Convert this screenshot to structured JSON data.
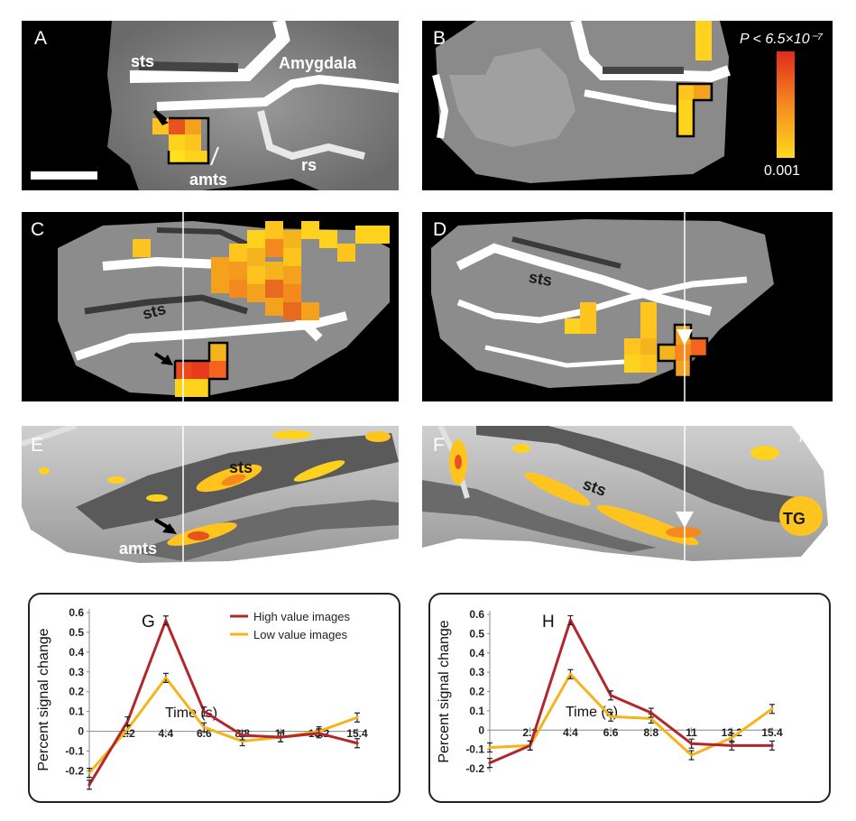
{
  "panels": {
    "A": {
      "letter": "A",
      "sts": "sts",
      "amygdala": "Amygdala",
      "amts": "amts",
      "rs": "rs"
    },
    "B": {
      "letter": "B",
      "colorbar_top": "P < 6.5×10⁻⁷",
      "colorbar_bottom": "0.001"
    },
    "C": {
      "letter": "C",
      "sts": "sts"
    },
    "D": {
      "letter": "D",
      "sts": "sts"
    },
    "E": {
      "letter": "E",
      "sts": "sts",
      "amts": "amts"
    },
    "F": {
      "letter": "F",
      "sts": "sts",
      "ls": "ls",
      "tg": "TG"
    }
  },
  "colors": {
    "high": "#b3262c",
    "low": "#f4b41a",
    "brain_bg": "#000000",
    "activation_low": "#ffd21e",
    "activation_high": "#e83a1e"
  },
  "chart_data": [
    {
      "type": "line",
      "panel_letter": "G",
      "xlabel": "Time (s)",
      "ylabel": "Percent signal change",
      "categories": [
        "0",
        "2.2",
        "4.4",
        "6.6",
        "8.8",
        "11",
        "13.2",
        "15.4"
      ],
      "tick_labels_x": [
        "2.2",
        "4.4",
        "6.6",
        "8.8",
        "11",
        "13.2",
        "15.4"
      ],
      "y_ticks": [
        "0.6",
        "0.5",
        "0.4",
        "0.3",
        "0.2",
        "0.1",
        "0",
        "-0.1",
        "-0.2"
      ],
      "ylim": [
        -0.28,
        0.6
      ],
      "legend": "top-right",
      "series": [
        {
          "name": "High value images",
          "color": "#b3262c",
          "values": [
            -0.27,
            0.05,
            0.56,
            0.1,
            -0.02,
            -0.03,
            -0.01,
            -0.06
          ]
        },
        {
          "name": "Low value images",
          "color": "#f4b41a",
          "values": [
            -0.21,
            0.01,
            0.27,
            0.02,
            -0.05,
            -0.03,
            0.0,
            0.07
          ]
        }
      ]
    },
    {
      "type": "line",
      "panel_letter": "H",
      "xlabel": "Time (s)",
      "ylabel": "Percent signal change",
      "categories": [
        "0",
        "2.2",
        "4.4",
        "6.6",
        "8.8",
        "11",
        "13.2",
        "15.4"
      ],
      "tick_labels_x": [
        "2.2",
        "4.4",
        "6.6",
        "8.8",
        "11",
        "13.2",
        "15.4"
      ],
      "y_ticks": [
        "0.6",
        "0.5",
        "0.4",
        "0.3",
        "0.2",
        "0.1",
        "0",
        "-0.1",
        "-0.2"
      ],
      "ylim": [
        -0.2,
        0.6
      ],
      "legend": "none",
      "series": [
        {
          "name": "High value images",
          "color": "#b3262c",
          "values": [
            -0.17,
            -0.08,
            0.57,
            0.18,
            0.09,
            -0.07,
            -0.08,
            -0.08
          ]
        },
        {
          "name": "Low value images",
          "color": "#f4b41a",
          "values": [
            -0.09,
            -0.08,
            0.29,
            0.07,
            0.06,
            -0.13,
            -0.04,
            0.11
          ]
        }
      ]
    }
  ]
}
